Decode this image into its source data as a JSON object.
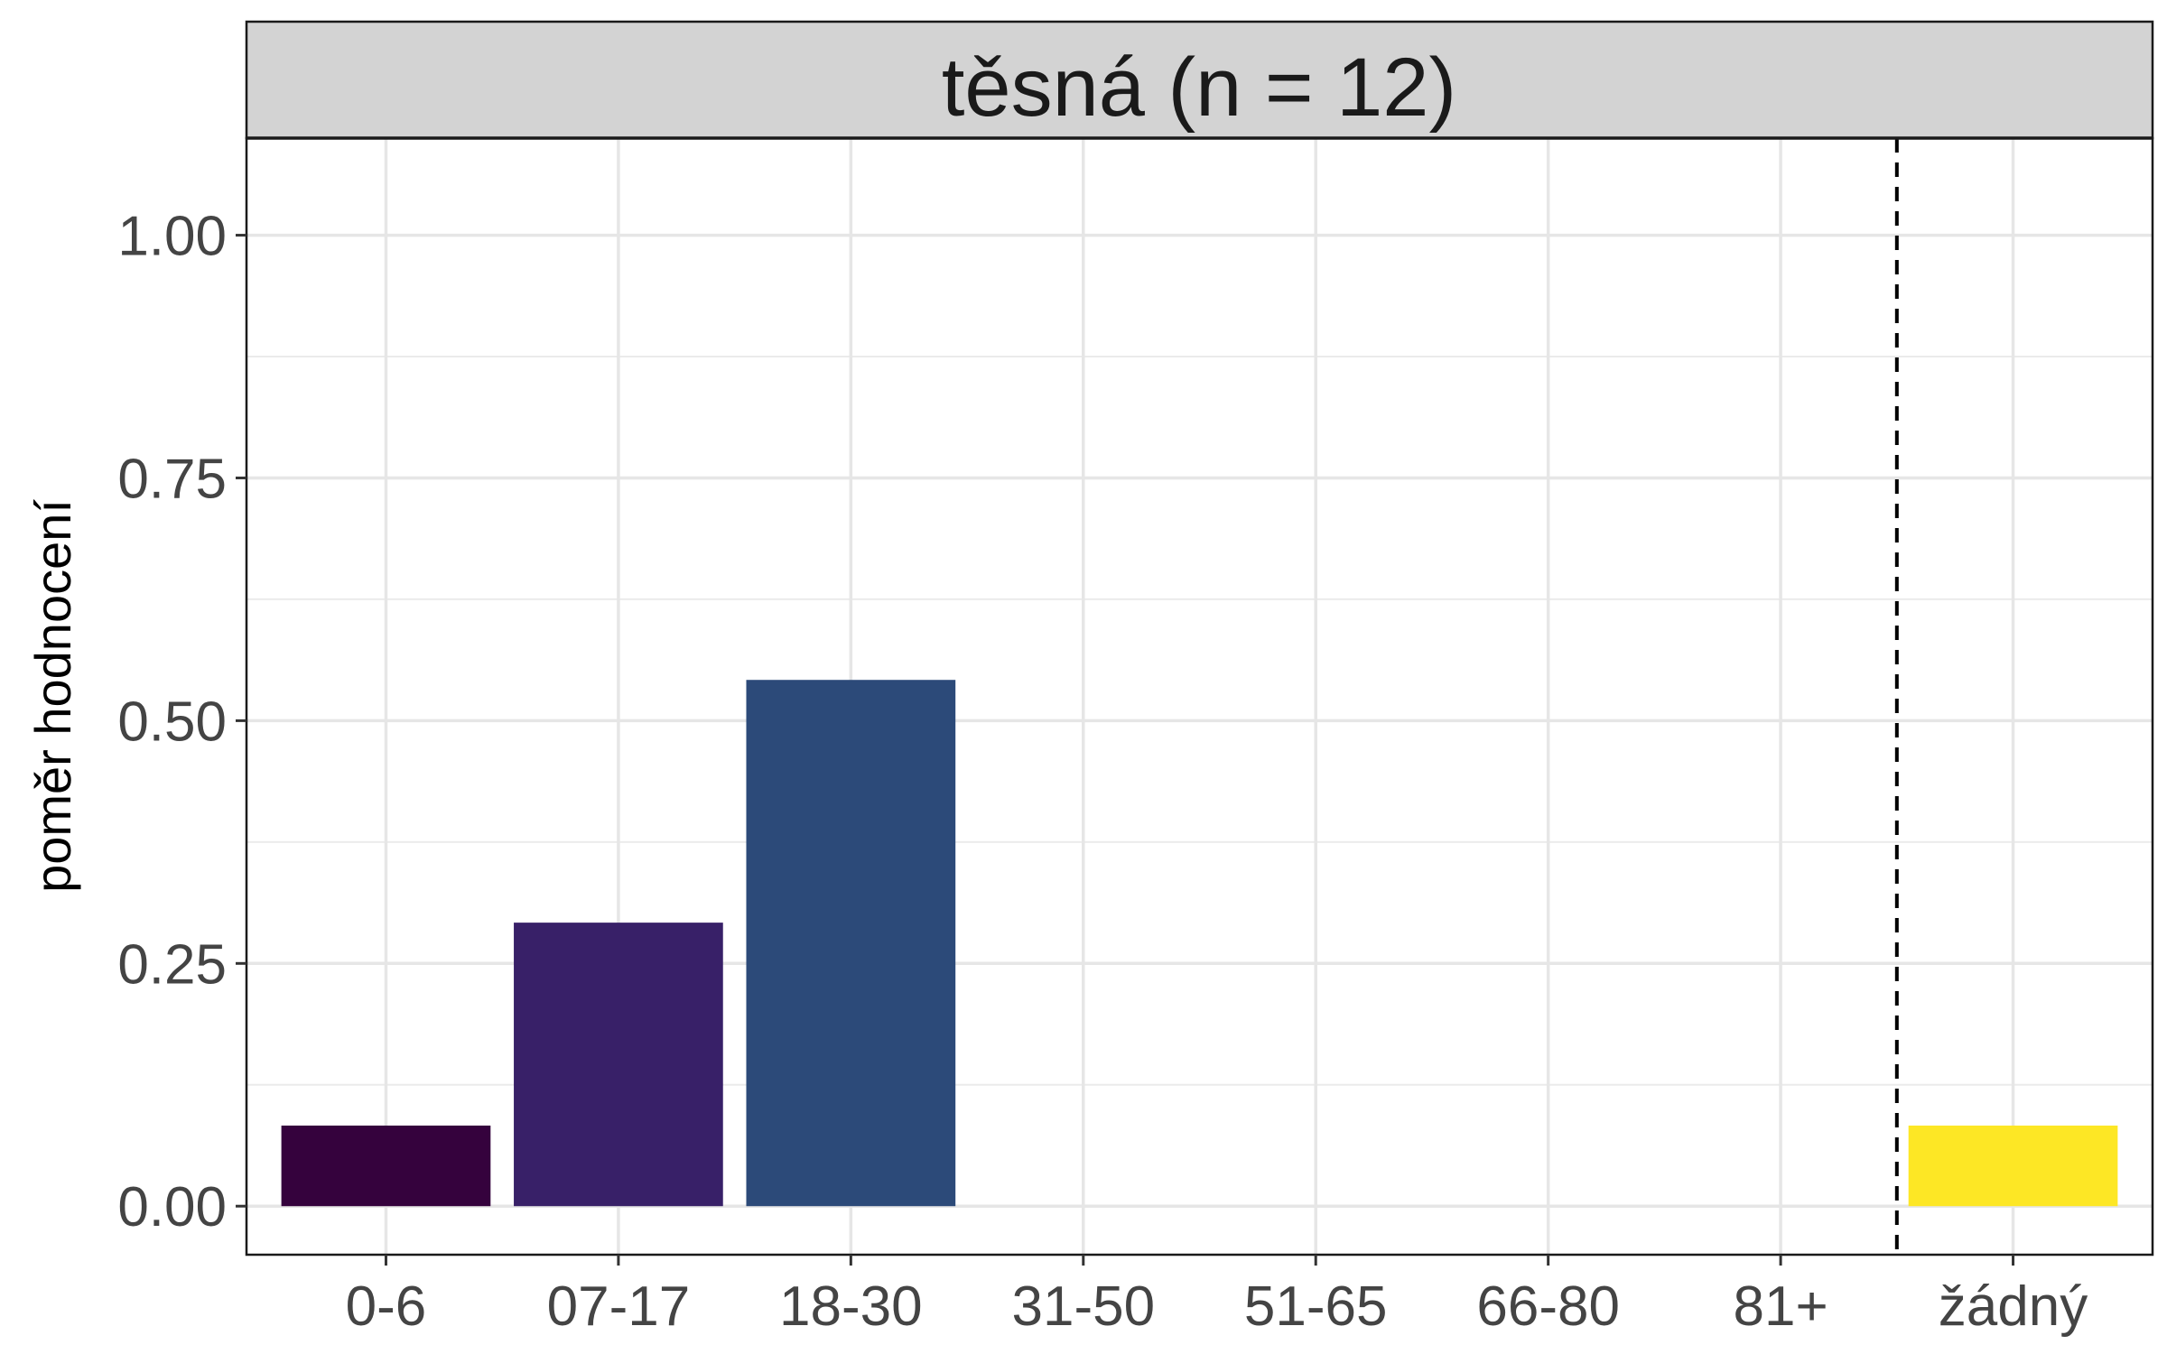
{
  "chart_data": {
    "type": "bar",
    "title": "těsná (n = 12)",
    "xlabel": "",
    "ylabel": "poměr hodnocení",
    "categories": [
      "0-6",
      "07-17",
      "18-30",
      "31-50",
      "51-65",
      "66-80",
      "81+",
      "žádný"
    ],
    "values": [
      0.083,
      0.292,
      0.542,
      0,
      0,
      0,
      0,
      0.083
    ],
    "colors": [
      "#35023d",
      "#382068",
      "#2c4a79",
      "#2a788e",
      "#22a884",
      "#7ad151",
      "#bddf26",
      "#fde725"
    ],
    "ylim": [
      -0.05,
      1.1
    ],
    "yticks": [
      0,
      0.25,
      0.5,
      0.75,
      1.0
    ],
    "ytick_labels": [
      "0.00",
      "0.25",
      "0.50",
      "0.75",
      "1.00"
    ],
    "reference_line": {
      "between": [
        "81+",
        "žádný"
      ],
      "style": "dashed"
    },
    "grid": true,
    "legend": "none"
  }
}
